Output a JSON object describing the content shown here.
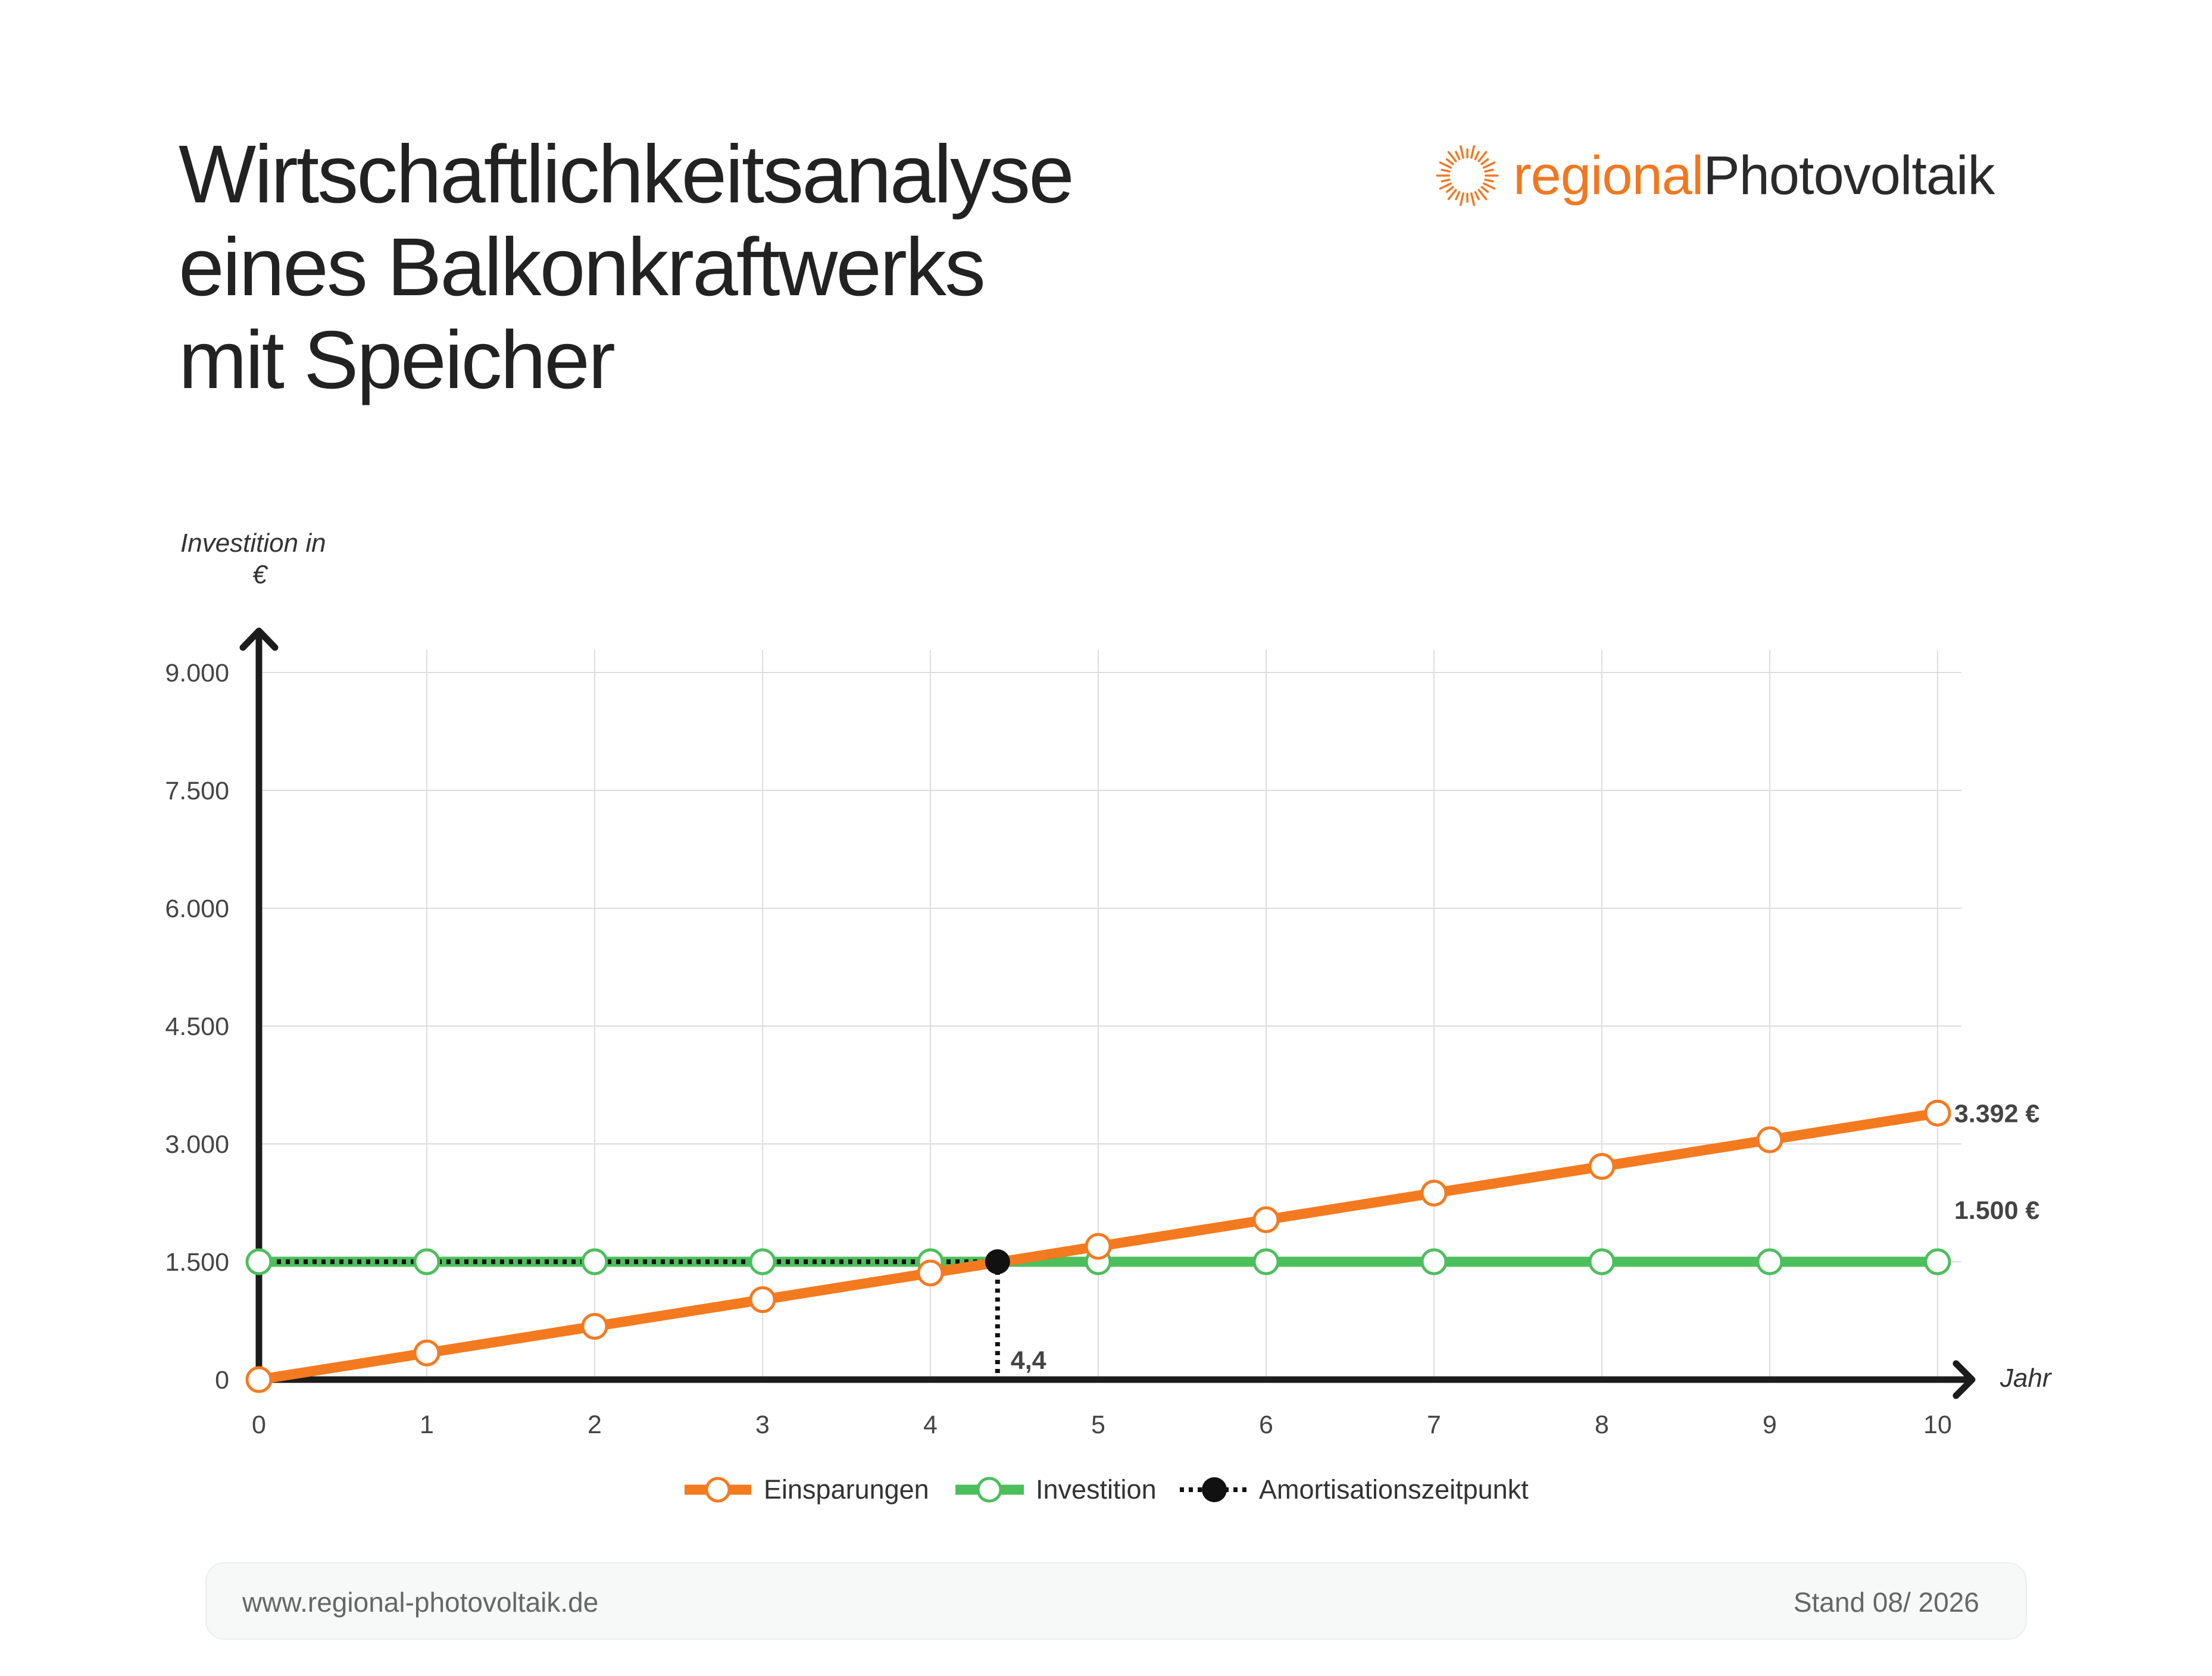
{
  "title": {
    "line1": "Wirtschaftlichkeitsanalyse",
    "line2": "eines Balkonkraftwerks",
    "line3": "mit Speicher"
  },
  "logo": {
    "part1": "regional",
    "part2": "Photovoltaik",
    "icon": "sun-burst-icon",
    "color_accent": "#f07820"
  },
  "chart_data": {
    "type": "line",
    "ylabel_line1": "Investition in",
    "ylabel_line2": "€",
    "xlabel": "Jahr",
    "x": [
      0,
      1,
      2,
      3,
      4,
      5,
      6,
      7,
      8,
      9,
      10
    ],
    "xlim": [
      0,
      10
    ],
    "ylim": [
      0,
      9000
    ],
    "yticks": [
      0,
      1500,
      3000,
      4500,
      6000,
      7500,
      9000
    ],
    "ytick_labels": [
      "0",
      "1.500",
      "3.000",
      "4.500",
      "6.000",
      "7.500",
      "9.000"
    ],
    "xtick_labels": [
      "0",
      "1",
      "2",
      "3",
      "4",
      "5",
      "6",
      "7",
      "8",
      "9",
      "10"
    ],
    "grid": true,
    "legend_position": "bottom",
    "series": [
      {
        "name": "Einsparungen",
        "color": "#f47a20",
        "values": [
          0,
          339.2,
          678.4,
          1017.6,
          1356.8,
          1696,
          2035.2,
          2374.4,
          2713.6,
          3052.8,
          3392
        ],
        "end_label": "3.392 €"
      },
      {
        "name": "Investition",
        "color": "#4cbf5c",
        "values": [
          1500,
          1500,
          1500,
          1500,
          1500,
          1500,
          1500,
          1500,
          1500,
          1500,
          1500
        ],
        "end_label": "1.500 €"
      }
    ],
    "break_even": {
      "name": "Amortisationszeitpunkt",
      "x": 4.4,
      "y": 1500,
      "label": "4,4",
      "color": "#111111"
    }
  },
  "footer": {
    "url": "www.regional-photovoltaik.de",
    "date": "Stand 08/ 2026"
  }
}
